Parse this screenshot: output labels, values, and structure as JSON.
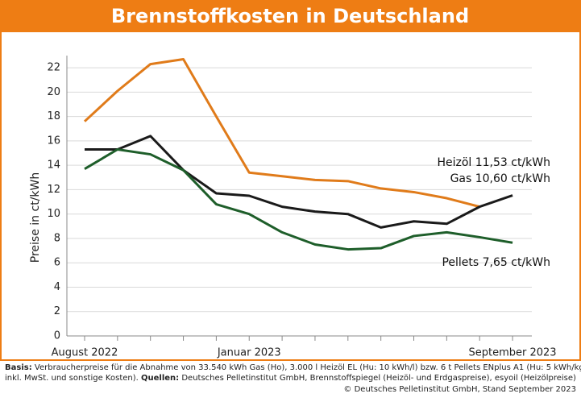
{
  "chart_data": {
    "type": "line",
    "title": "Brennstoffkosten in Deutschland",
    "y_label": "Preise in ct/kWh",
    "categories": [
      "August 2022",
      null,
      null,
      null,
      null,
      "Januar 2023",
      null,
      null,
      null,
      null,
      null,
      null,
      null,
      "September 2023"
    ],
    "series": [
      {
        "name": "Gas",
        "color": "#e07b1a",
        "values": [
          17.6,
          20.1,
          22.3,
          22.7,
          18.0,
          13.4,
          13.1,
          12.8,
          12.7,
          12.1,
          11.8,
          11.3,
          10.6,
          null
        ]
      },
      {
        "name": "Heizöl",
        "color": "#1a1a1a",
        "values": [
          15.3,
          15.3,
          16.4,
          13.6,
          11.7,
          11.5,
          10.6,
          10.2,
          10.0,
          8.9,
          9.4,
          9.2,
          10.6,
          11.53
        ]
      },
      {
        "name": "Pellets",
        "color": "#1e5e2a",
        "values": [
          13.7,
          15.3,
          14.9,
          13.6,
          10.8,
          10.0,
          8.5,
          7.5,
          7.1,
          7.2,
          8.2,
          8.5,
          8.1,
          7.65
        ]
      }
    ],
    "annotations": [
      "Heizöl 11,53 ct/kWh",
      "Gas 10,60 ct/kWh",
      "Pellets 7,65 ct/kWh"
    ],
    "ylim": [
      0,
      23
    ],
    "yticks": [
      0,
      2,
      4,
      6,
      8,
      10,
      12,
      14,
      16,
      18,
      20,
      22
    ],
    "grid": true,
    "footnote": {
      "basis_label": "Basis:",
      "basis_text": "Verbraucherpreise für die Abnahme von 33.540 kWh Gas (Ho), 3.000 l Heizöl EL (Hu: 10 kWh/l) bzw. 6 t Pellets ENplus A1 (Hu: 5 kWh/kg,",
      "basis_text2": "inkl. MwSt. und sonstige Kosten).",
      "sources_label": "Quellen:",
      "sources_text": "Deutsches Pelletinstitut GmbH, Brennstoffspiegel (Heizöl- und Erdgaspreise), esyoil (Heizölpreise)",
      "copyright": "© Deutsches Pelletinstitut GmbH, Stand September 2023"
    }
  }
}
